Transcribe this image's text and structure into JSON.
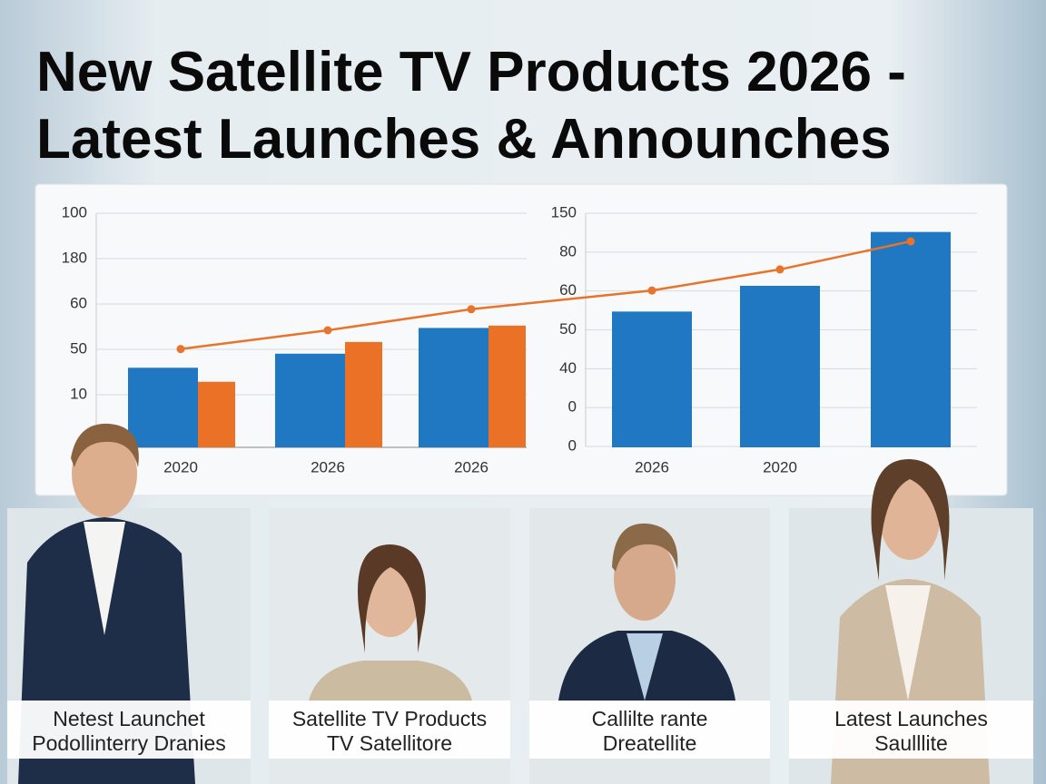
{
  "title": [
    "New Satellite TV Products 2026 -",
    "Latest Launches & Announches"
  ],
  "chart_data": {
    "type": "bar",
    "categories": [
      "2020",
      "2026",
      "2026",
      "2026",
      "2020",
      null
    ],
    "ylabels": [
      "100",
      "180",
      "60",
      "50",
      "10"
    ],
    "y2labels": [
      "150",
      "80",
      "60",
      "50",
      "40",
      "0",
      "0"
    ],
    "ylim": [
      0,
      100
    ],
    "series": [
      {
        "type": "bar",
        "color": "#1f78c1",
        "values": [
          34,
          40,
          51,
          58,
          69,
          92
        ]
      },
      {
        "type": "bar",
        "color": "#ea7125",
        "values": [
          28,
          45,
          52,
          null,
          null,
          null
        ]
      },
      {
        "type": "line",
        "color": "#e8732a",
        "values": [
          42,
          50,
          59,
          67,
          76,
          88
        ]
      }
    ]
  },
  "cards": [
    {
      "lines": [
        "Netest Launchet",
        "Podollinterry Dranies"
      ]
    },
    {
      "lines": [
        "Satellite TV Products",
        "TV Satellitore"
      ]
    },
    {
      "lines": [
        "Callilte rante",
        "Dreatellite"
      ]
    },
    {
      "lines": [
        "Latest Launches",
        "Saulllite"
      ]
    }
  ]
}
